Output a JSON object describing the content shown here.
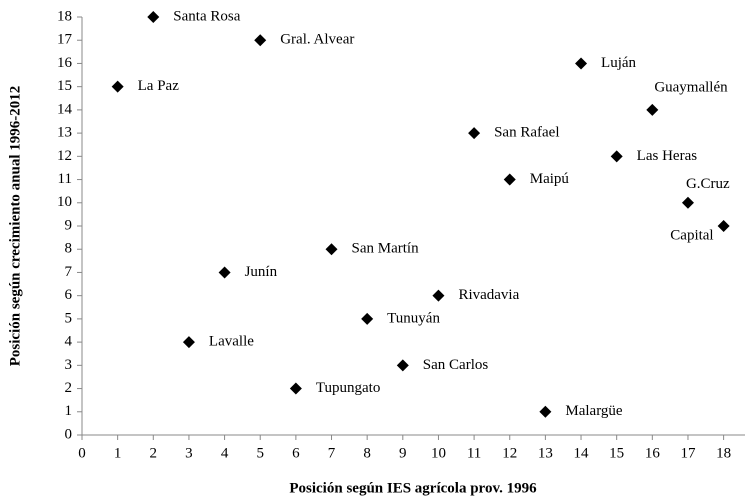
{
  "chart_data": {
    "type": "scatter",
    "x_label": "Posición según IES agrícola prov. 1996",
    "y_label": "Posición según crecimiento anual 1996-2012",
    "labels": [
      "Santa Rosa",
      "Gral. Alvear",
      "La Paz",
      "Luján",
      "Guaymallén",
      "San Rafael",
      "Las Heras",
      "Maipú",
      "G.Cruz",
      "Capital",
      "San Martín",
      "Junín",
      "Rivadavia",
      "Tunuyán",
      "Lavalle",
      "San Carlos",
      "Tupungato",
      "Malargüe"
    ],
    "x": [
      2,
      5,
      1,
      14,
      16,
      11,
      15,
      12,
      17,
      18,
      7,
      4,
      10,
      8,
      3,
      9,
      6,
      13
    ],
    "y": [
      18,
      17,
      15,
      16,
      14,
      13,
      12,
      11,
      10,
      9,
      8,
      7,
      6,
      5,
      4,
      3,
      2,
      1
    ],
    "color": "#000000",
    "xlim": [
      0,
      18.6
    ],
    "ylim": [
      0,
      18
    ],
    "xticks": [
      0,
      1,
      2,
      3,
      4,
      5,
      6,
      7,
      8,
      9,
      10,
      11,
      12,
      13,
      14,
      15,
      16,
      17,
      18
    ],
    "yticks": [
      0,
      1,
      2,
      3,
      4,
      5,
      6,
      7,
      8,
      9,
      10,
      11,
      12,
      13,
      14,
      15,
      16,
      17,
      18
    ]
  }
}
